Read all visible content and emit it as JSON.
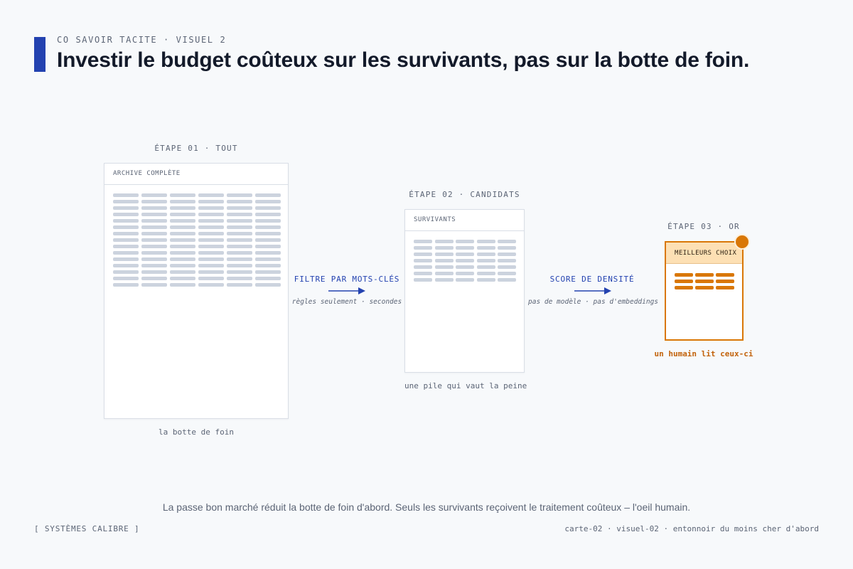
{
  "header": {
    "eyebrow": "CO SAVOIR TACITE · VISUEL 2",
    "title": "Investir le budget coûteux sur les survivants, pas sur la botte de foin."
  },
  "stages": [
    {
      "label": "ÉTAPE 01 · TOUT",
      "card_title": "ARCHIVE COMPLÈTE",
      "caption": "la botte de foin"
    },
    {
      "label": "ÉTAPE 02 · CANDIDATS",
      "card_title": "SURVIVANTS",
      "caption": "une pile qui vaut la peine"
    },
    {
      "label": "ÉTAPE 03 · OR",
      "card_title": "MEILLEURS CHOIX",
      "caption": "un humain lit ceux-ci"
    }
  ],
  "arrows": [
    {
      "label": "FILTRE PAR MOTS-CLÉS",
      "note": "règles seulement · secondes"
    },
    {
      "label": "SCORE DE DENSITÉ",
      "note": "pas de modèle · pas d'embeddings"
    }
  ],
  "footer": {
    "summary": "La passe bon marché réduit la botte de foin d'abord. Seuls les survivants reçoivent le traitement coûteux – l'oeil humain.",
    "brand": "[ SYSTÈMES CALIBRE ]",
    "reference": "carte-02 · visuel-02 · entonnoir du moins cher d'abord"
  },
  "colors": {
    "accent": "#2342b0",
    "gold": "#d97706",
    "gold_light": "#fde0b4",
    "placeholder": "#ccd3de"
  }
}
